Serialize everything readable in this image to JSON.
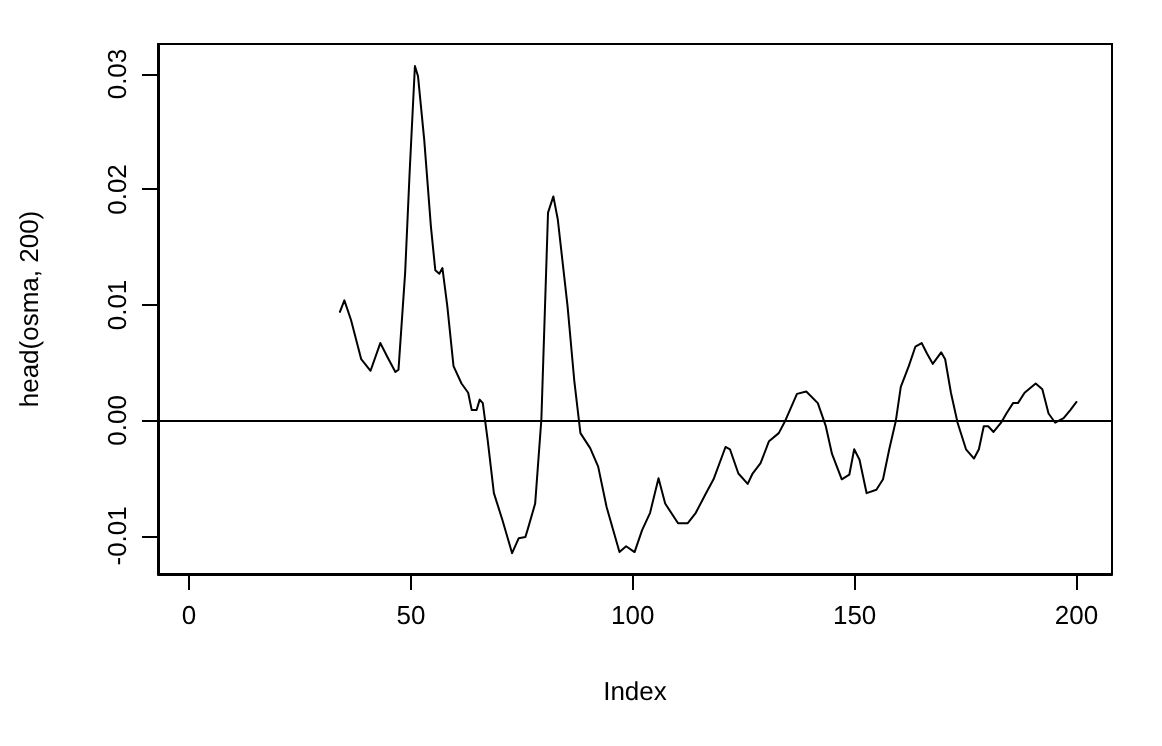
{
  "chart_data": {
    "type": "line",
    "xlabel": "Index",
    "ylabel": "head(osma, 200)",
    "xlim": [
      -7,
      208
    ],
    "xticks": [
      0,
      50,
      100,
      150,
      200
    ],
    "ylim": [
      -0.0133,
      0.0326
    ],
    "yticks": [
      -0.01,
      {
        "value": 0,
        "label": "0.00"
      },
      0.01,
      0.02,
      0.03
    ],
    "ref_lines": [
      {
        "axis": "y",
        "value": 0,
        "color": "#000000"
      }
    ],
    "series": [
      {
        "color": "#000000",
        "x": [
          34,
          35,
          36.5,
          38.8,
          40.9,
          43.1,
          44.7,
          46.5,
          47.2,
          48.7,
          49.7,
          50.9,
          51.6,
          53,
          54.5,
          55.5,
          56.4,
          57.1,
          58.2,
          59.6,
          61.4,
          62.9,
          63.7,
          64.8,
          65.5,
          66.2,
          67.3,
          68.7,
          70.6,
          72.8,
          74.3,
          75.8,
          76.5,
          78,
          79.4,
          80.9,
          82.1,
          83.1,
          85.3,
          86.8,
          88.2,
          90.4,
          92.2,
          94.1,
          97,
          98.5,
          100.4,
          102.1,
          103.9,
          105.8,
          107.3,
          110.2,
          112.4,
          114.2,
          116.5,
          118.2,
          120.9,
          121.9,
          123.8,
          125.9,
          127,
          128.8,
          130.7,
          132.9,
          134.4,
          137,
          139.1,
          141.7,
          143.5,
          144.9,
          147.1,
          148.8,
          149.9,
          151.1,
          152.7,
          154.9,
          156.4,
          157.8,
          159.3,
          160.4,
          162.2,
          163.7,
          165.1,
          166.3,
          167.6,
          169.5,
          170.4,
          171.7,
          173.2,
          175.1,
          176.9,
          178,
          179.1,
          180.1,
          181.3,
          183,
          184.2,
          185.7,
          186.8,
          188.3,
          190.8,
          192.3,
          193.7,
          195.2,
          197.1,
          198.6,
          200
        ],
        "values": [
          0.0094,
          0.0104,
          0.0087,
          0.0053,
          0.0043,
          0.0067,
          0.0055,
          0.0042,
          0.0044,
          0.0128,
          0.0214,
          0.0307,
          0.0298,
          0.0243,
          0.0168,
          0.013,
          0.0127,
          0.0132,
          0.0099,
          0.0047,
          0.0032,
          0.0024,
          0.0009,
          0.0009,
          0.0018,
          0.0015,
          -0.0017,
          -0.0063,
          -0.0086,
          -0.0115,
          -0.0102,
          -0.0101,
          -0.0092,
          -0.0072,
          0.0001,
          0.018,
          0.0194,
          0.0174,
          0.0099,
          0.0035,
          -0.0011,
          -0.0024,
          -0.004,
          -0.0075,
          -0.0114,
          -0.0109,
          -0.0114,
          -0.0095,
          -0.008,
          -0.005,
          -0.0072,
          -0.0089,
          -0.0089,
          -0.008,
          -0.0063,
          -0.0051,
          -0.0023,
          -0.0025,
          -0.0046,
          -0.0055,
          -0.0046,
          -0.0037,
          -0.0018,
          -0.0011,
          0,
          0.0023,
          0.0025,
          0.0015,
          -0.0005,
          -0.0029,
          -0.0051,
          -0.0047,
          -0.0025,
          -0.0034,
          -0.0063,
          -0.006,
          -0.0051,
          -0.0025,
          0,
          0.0029,
          0.0047,
          0.0064,
          0.0067,
          0.0058,
          0.0049,
          0.0059,
          0.0053,
          0.0024,
          -0.0002,
          -0.0025,
          -0.0033,
          -0.0025,
          -0.0005,
          -0.0005,
          -0.001,
          -0.0002,
          0.0006,
          0.0015,
          0.0015,
          0.0024,
          0.0032,
          0.0027,
          0.0006,
          -0.0002,
          0.0002,
          0.0009,
          0.0016
        ]
      }
    ]
  }
}
